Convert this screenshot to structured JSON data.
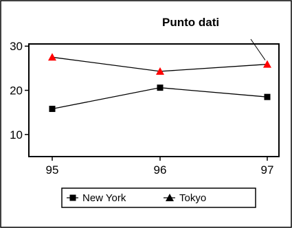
{
  "colors": {
    "frame": "#000000",
    "line": "#000000",
    "tokyo_marker": "#ff0000",
    "newyork_marker": "#000000",
    "background": "#ffffff"
  },
  "annotation": {
    "text": "Punto dati"
  },
  "legend": {
    "placement": "bottom",
    "items": [
      "New York",
      "Tokyo"
    ]
  },
  "chart_data": {
    "type": "line",
    "title": "",
    "xlabel": "",
    "ylabel": "",
    "categories": [
      "95",
      "96",
      "97"
    ],
    "y_ticks": [
      "10",
      "20",
      "30"
    ],
    "ylim": [
      5,
      30.5
    ],
    "grid": false,
    "annotations": [
      {
        "text": "Punto dati",
        "series": "Tokyo",
        "category": "97"
      }
    ],
    "series": [
      {
        "name": "New York",
        "marker": "square",
        "values": [
          15.8,
          20.6,
          18.5
        ]
      },
      {
        "name": "Tokyo",
        "marker": "triangle",
        "values": [
          27.5,
          24.3,
          25.9
        ]
      }
    ]
  }
}
